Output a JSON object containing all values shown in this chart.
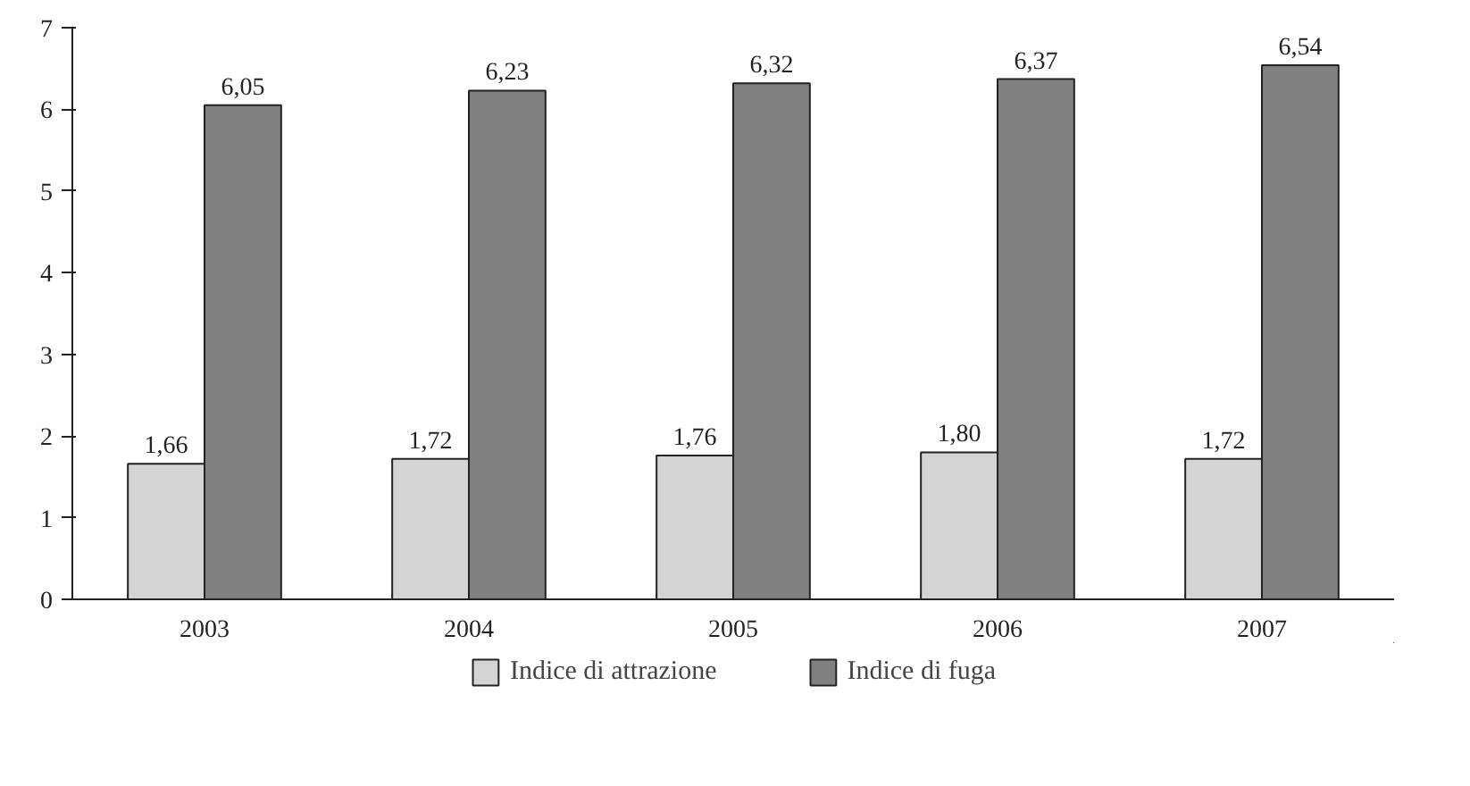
{
  "chart_data": {
    "type": "bar",
    "categories": [
      "2003",
      "2004",
      "2005",
      "2006",
      "2007"
    ],
    "series": [
      {
        "name": "Indice di attrazione",
        "color": "#d4d4d6",
        "values": [
          1.66,
          1.72,
          1.76,
          1.8,
          1.72
        ],
        "value_labels": [
          "1,66",
          "1,72",
          "1,76",
          "1,80",
          "1,72"
        ]
      },
      {
        "name": "Indice di fuga",
        "color": "#808083",
        "values": [
          6.05,
          6.23,
          6.32,
          6.37,
          6.54
        ],
        "value_labels": [
          "6,05",
          "6,23",
          "6,32",
          "6,37",
          "6,54"
        ]
      }
    ],
    "ylim": [
      0,
      7
    ],
    "yticks": [
      0,
      1,
      2,
      3,
      4,
      5,
      6,
      7
    ],
    "grid": false,
    "legend": "bottom"
  }
}
